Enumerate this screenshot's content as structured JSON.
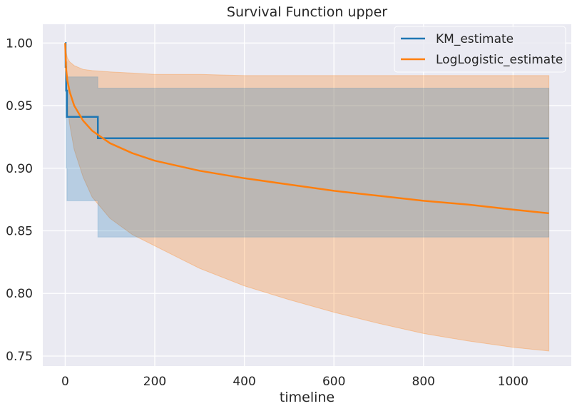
{
  "chart_data": {
    "type": "line",
    "title": "Survival Function upper",
    "xlabel": "timeline",
    "ylabel": "",
    "xlim": [
      -50,
      1130
    ],
    "ylim": [
      0.742,
      1.015
    ],
    "grid": true,
    "legend_position": "top-right",
    "x_ticks": [
      0,
      200,
      400,
      600,
      800,
      1000
    ],
    "x_tick_labels": [
      "0",
      "200",
      "400",
      "600",
      "800",
      "1000"
    ],
    "y_ticks": [
      0.75,
      0.8,
      0.85,
      0.9,
      0.95,
      1.0
    ],
    "y_tick_labels": [
      "0.75",
      "0.80",
      "0.85",
      "0.90",
      "0.95",
      "1.00"
    ],
    "colors": {
      "background": "#eaeaf2",
      "grid": "#ffffff",
      "km": "#1f77b4",
      "loglogistic": "#ff7f0e"
    },
    "series": [
      {
        "name": "KM_estimate",
        "style": "step",
        "x": [
          0,
          1,
          2,
          4,
          73,
          1080
        ],
        "y": [
          1.0,
          0.981,
          0.962,
          0.941,
          0.924,
          0.924
        ],
        "ci_lower": [
          1.0,
          0.94,
          0.9,
          0.874,
          0.845,
          0.845
        ],
        "ci_upper": [
          1.0,
          0.997,
          0.985,
          0.973,
          0.964,
          0.964
        ]
      },
      {
        "name": "LogLogistic_estimate",
        "style": "line",
        "x": [
          0,
          2,
          5,
          10,
          20,
          40,
          60,
          100,
          150,
          200,
          300,
          400,
          500,
          600,
          700,
          800,
          900,
          1000,
          1080
        ],
        "y": [
          1.0,
          0.979,
          0.97,
          0.961,
          0.95,
          0.938,
          0.93,
          0.92,
          0.912,
          0.906,
          0.898,
          0.892,
          0.887,
          0.882,
          0.878,
          0.874,
          0.871,
          0.867,
          0.864
        ],
        "ci_lower": [
          1.0,
          0.965,
          0.95,
          0.935,
          0.915,
          0.893,
          0.877,
          0.86,
          0.847,
          0.838,
          0.82,
          0.806,
          0.795,
          0.785,
          0.776,
          0.768,
          0.762,
          0.757,
          0.754
        ],
        "ci_upper": [
          1.0,
          0.993,
          0.988,
          0.985,
          0.982,
          0.979,
          0.978,
          0.977,
          0.976,
          0.975,
          0.975,
          0.974,
          0.974,
          0.974,
          0.974,
          0.974,
          0.974,
          0.974,
          0.974
        ]
      }
    ]
  }
}
